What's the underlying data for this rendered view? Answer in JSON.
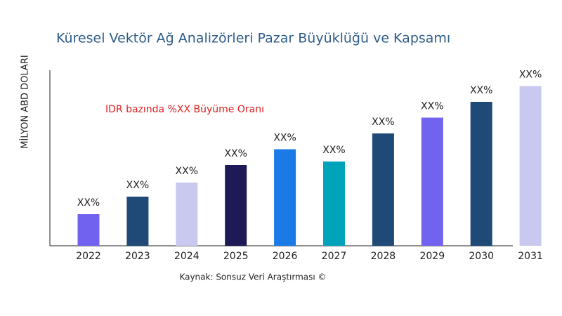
{
  "chart_data": {
    "type": "bar",
    "title": "Küresel Vektör Ağ Analizörleri Pazar Büyüklüğü ve Kapsamı",
    "y_label": "MİLYON ABD DOLARI",
    "annotation": "IDR bazında %XX Büyüme Oranı",
    "source": "Kaynak: Sonsuz Veri Araştırması ©",
    "categories": [
      "2022",
      "2023",
      "2024",
      "2025",
      "2026",
      "2027",
      "2028",
      "2029",
      "2030",
      "2031"
    ],
    "values": [
      18,
      28,
      36,
      46,
      55,
      48,
      64,
      73,
      82,
      91
    ],
    "value_labels": [
      "XX%",
      "XX%",
      "XX%",
      "XX%",
      "XX%",
      "XX%",
      "XX%",
      "XX%",
      "XX%",
      "XX%"
    ],
    "colors": [
      "#7262f0",
      "#1f4a78",
      "#c9c9f0",
      "#1e1a58",
      "#1a7be6",
      "#00a3b9",
      "#1f4a78",
      "#7262f0",
      "#1f4a78",
      "#c9c9f0"
    ],
    "ylim": [
      0,
      100
    ]
  }
}
